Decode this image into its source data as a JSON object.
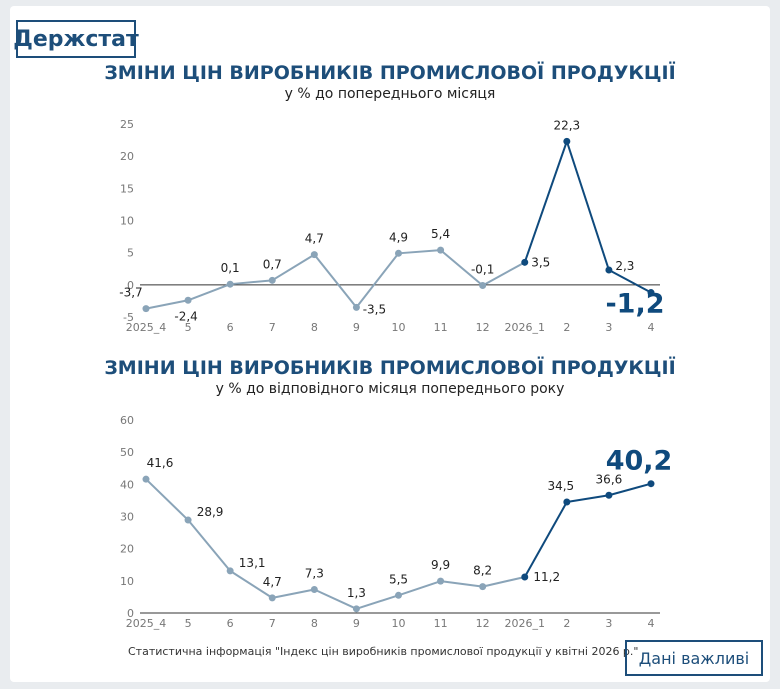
{
  "logo": "Держстат",
  "colors": {
    "light": "#8aa4b8",
    "dark": "#0f4a7d",
    "text": "#1d4e7a"
  },
  "chart1_title": "ЗМІНИ ЦІН ВИРОБНИКІВ ПРОМИСЛОВОЇ ПРОДУКЦІЇ",
  "chart1_subtitle": "у % до попереднього місяця",
  "chart2_title": "ЗМІНИ ЦІН ВИРОБНИКІВ ПРОМИСЛОВОЇ ПРОДУКЦІЇ",
  "chart2_subtitle": "у % до відповідного місяця попереднього року",
  "footer": "Статистична інформація \"Індекс цін виробників промислової продукції у квітні 2026 р.\"",
  "badge": "Дані важливі",
  "chart_data": [
    {
      "type": "line",
      "categories": [
        "2025_4",
        "5",
        "6",
        "7",
        "8",
        "9",
        "10",
        "11",
        "12",
        "2026_1",
        "2",
        "3",
        "4"
      ],
      "values": [
        -3.7,
        -2.4,
        0.1,
        0.7,
        4.7,
        -3.5,
        4.9,
        5.4,
        -0.1,
        3.5,
        22.3,
        2.3,
        -1.2
      ],
      "labels": [
        "-3,7",
        "-2,4",
        "0,1",
        "0,7",
        "4,7",
        "-3,5",
        "4,9",
        "5,4",
        "-0,1",
        "3,5",
        "22,3",
        "2,3",
        "-1,2"
      ],
      "yticks": [
        "-5",
        "0",
        "5",
        "10",
        "15",
        "20",
        "25"
      ],
      "ylim": [
        -5,
        25
      ],
      "highlight_from": 9,
      "emphasis_last": true
    },
    {
      "type": "line",
      "categories": [
        "2025_4",
        "5",
        "6",
        "7",
        "8",
        "9",
        "10",
        "11",
        "12",
        "2026_1",
        "2",
        "3",
        "4"
      ],
      "values": [
        41.6,
        28.9,
        13.1,
        4.7,
        7.3,
        1.3,
        5.5,
        9.9,
        8.2,
        11.2,
        34.5,
        36.6,
        40.2
      ],
      "labels": [
        "41,6",
        "28,9",
        "13,1",
        "4,7",
        "7,3",
        "1,3",
        "5,5",
        "9,9",
        "8,2",
        "11,2",
        "34,5",
        "36,6",
        "40,2"
      ],
      "yticks": [
        "0",
        "10",
        "20",
        "30",
        "40",
        "50",
        "60"
      ],
      "ylim": [
        0,
        60
      ],
      "highlight_from": 9,
      "emphasis_last": true
    }
  ]
}
